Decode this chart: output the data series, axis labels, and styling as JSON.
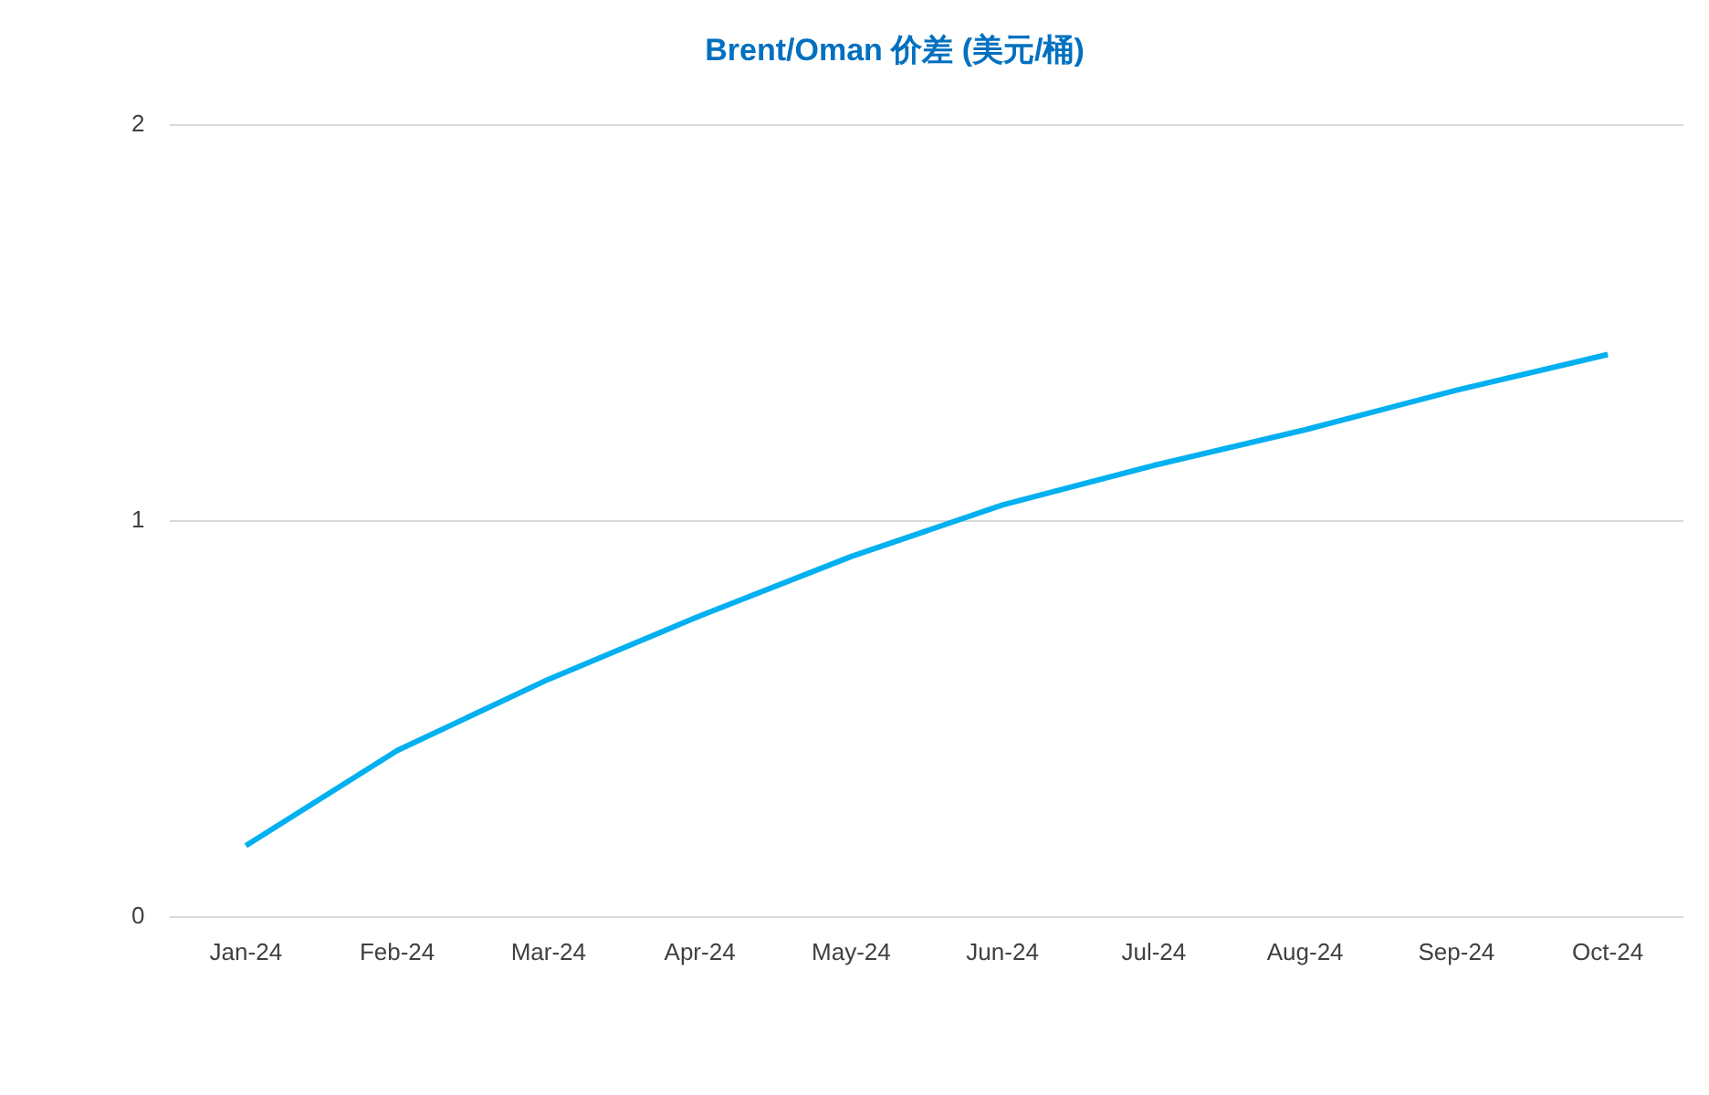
{
  "chart_data": {
    "type": "line",
    "title": "Brent/Oman 价差 (美元/桶)",
    "categories": [
      "Jan-24",
      "Feb-24",
      "Mar-24",
      "Apr-24",
      "May-24",
      "Jun-24",
      "Jul-24",
      "Aug-24",
      "Sep-24",
      "Oct-24"
    ],
    "series": [
      {
        "color": "#00b0f0",
        "values": [
          0.18,
          0.42,
          0.6,
          0.76,
          0.91,
          1.04,
          1.14,
          1.23,
          1.33,
          1.42
        ]
      }
    ],
    "ylim": [
      0,
      2
    ],
    "yticks": [
      0,
      1,
      2
    ],
    "grid": "y",
    "legend": false,
    "marker": "none",
    "line_style": "solid"
  }
}
